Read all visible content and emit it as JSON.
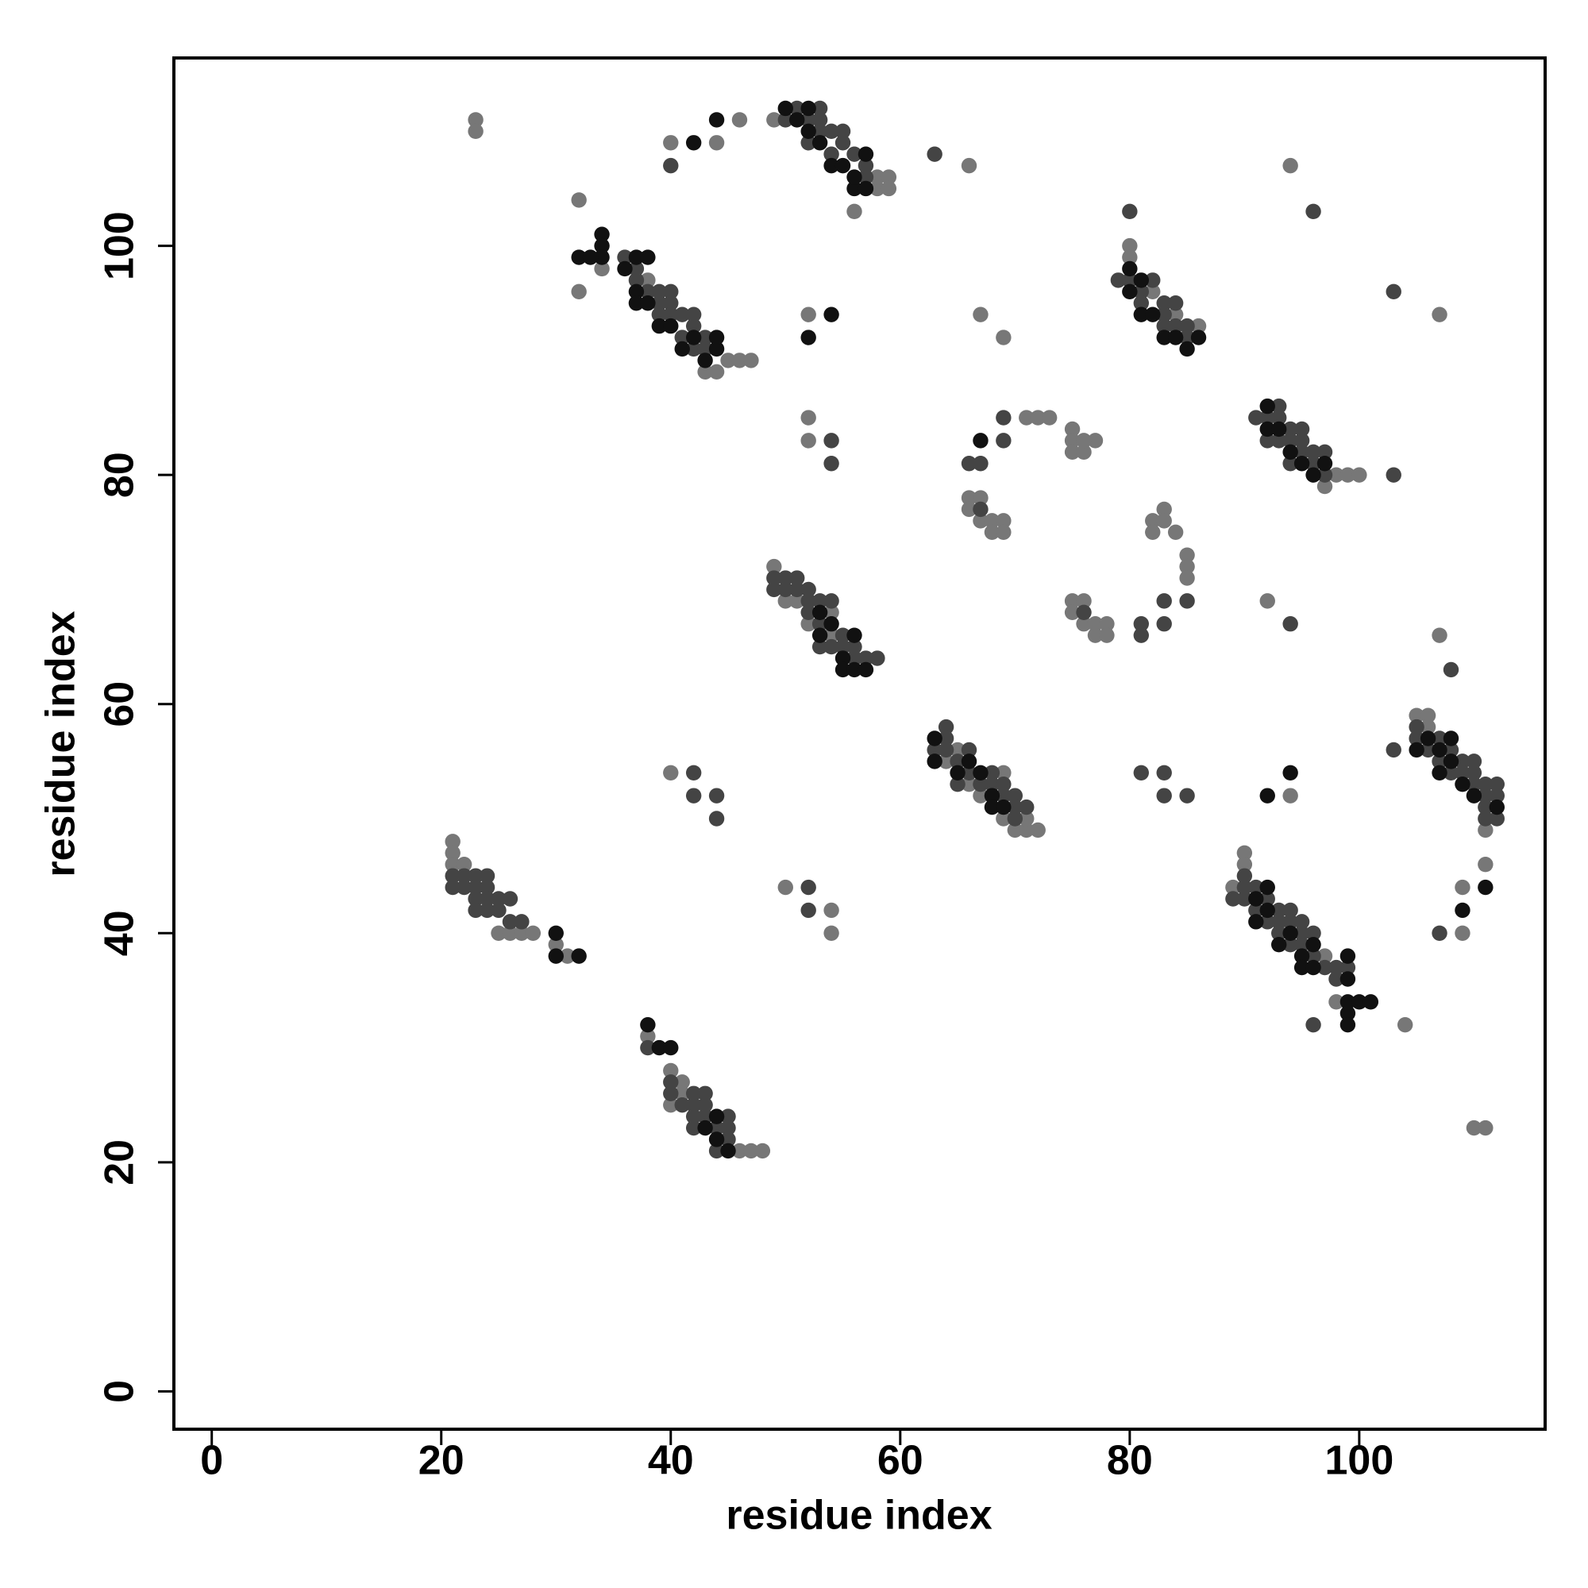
{
  "chart_data": {
    "type": "scatter",
    "xlabel": "residue index",
    "ylabel": "residue index",
    "xlim": [
      -3.3,
      116.2
    ],
    "ylim": [
      -3.3,
      116.4
    ],
    "xticks": [
      0,
      20,
      40,
      60,
      80,
      100
    ],
    "yticks": [
      0,
      20,
      40,
      60,
      80,
      100
    ],
    "series": [
      {
        "color": "#777777",
        "x": [
          23,
          23,
          32,
          40,
          44,
          46,
          56,
          58,
          58,
          59,
          59,
          49,
          32,
          34,
          38,
          43,
          44,
          45,
          46,
          47,
          80,
          80,
          82,
          84,
          86,
          66,
          94,
          107,
          52,
          67,
          69,
          98,
          99,
          100,
          97,
          71,
          72,
          73,
          75,
          75,
          75,
          76,
          77,
          76,
          66,
          67,
          66,
          67,
          68,
          69,
          68,
          69,
          82,
          83,
          83,
          82,
          84,
          85,
          85,
          85,
          75,
          76,
          75,
          76,
          77,
          77,
          78,
          78,
          49,
          50,
          51,
          52,
          54,
          54,
          64,
          65,
          66,
          67,
          69,
          69,
          70,
          71,
          72,
          71,
          105,
          106,
          106,
          111,
          111,
          109,
          109,
          107,
          94,
          92,
          90,
          90,
          89,
          97,
          98,
          104,
          21,
          21,
          21,
          22,
          25,
          26,
          27,
          28,
          30,
          31,
          38,
          40,
          40,
          41,
          46,
          47,
          48,
          110,
          111,
          40,
          50,
          54,
          54,
          52,
          52,
          41
        ],
        "y": [
          111,
          110,
          104,
          109,
          109,
          111,
          103,
          105,
          106,
          106,
          105,
          111,
          96,
          98,
          97,
          89,
          89,
          90,
          90,
          90,
          100,
          99,
          96,
          94,
          93,
          107,
          107,
          94,
          94,
          94,
          92,
          80,
          80,
          80,
          79,
          85,
          85,
          85,
          84,
          83,
          82,
          82,
          83,
          83,
          78,
          78,
          77,
          76,
          76,
          76,
          75,
          75,
          76,
          77,
          76,
          75,
          75,
          73,
          72,
          71,
          69,
          69,
          68,
          67,
          67,
          66,
          67,
          66,
          72,
          69,
          69,
          67,
          68,
          66,
          55,
          56,
          53,
          52,
          54,
          50,
          49,
          49,
          49,
          50,
          59,
          59,
          58,
          49,
          46,
          44,
          40,
          66,
          52,
          69,
          47,
          46,
          44,
          38,
          34,
          32,
          48,
          47,
          46,
          46,
          40,
          40,
          40,
          40,
          39,
          38,
          31,
          28,
          25,
          27,
          21,
          21,
          21,
          23,
          23,
          54,
          44,
          40,
          42,
          85,
          83,
          26
        ]
      },
      {
        "color": "#444444",
        "x": [
          40,
          50,
          51,
          52,
          53,
          53,
          53,
          54,
          54,
          55,
          55,
          56,
          57,
          57,
          63,
          96,
          103,
          52,
          36,
          37,
          37,
          38,
          39,
          39,
          39,
          40,
          40,
          40,
          41,
          41,
          42,
          42,
          42,
          43,
          43,
          80,
          79,
          80,
          81,
          81,
          82,
          83,
          83,
          83,
          84,
          84,
          85,
          85,
          91,
          92,
          92,
          93,
          93,
          93,
          94,
          94,
          94,
          95,
          95,
          95,
          96,
          96,
          97,
          97,
          103,
          54,
          54,
          69,
          66,
          67,
          69,
          67,
          76,
          81,
          81,
          83,
          83,
          85,
          49,
          49,
          50,
          50,
          51,
          51,
          52,
          52,
          52,
          53,
          53,
          53,
          54,
          54,
          55,
          55,
          56,
          56,
          57,
          58,
          63,
          64,
          64,
          64,
          65,
          65,
          66,
          66,
          67,
          68,
          68,
          69,
          69,
          70,
          70,
          70,
          71,
          103,
          105,
          105,
          106,
          107,
          107,
          108,
          108,
          109,
          109,
          110,
          110,
          110,
          111,
          111,
          111,
          111,
          112,
          112,
          112,
          107,
          108,
          81,
          83,
          83,
          85,
          94,
          90,
          89,
          90,
          90,
          91,
          91,
          92,
          92,
          93,
          93,
          93,
          94,
          94,
          94,
          95,
          95,
          95,
          96,
          96,
          97,
          98,
          98,
          99,
          96,
          21,
          21,
          22,
          22,
          23,
          23,
          23,
          23,
          24,
          24,
          24,
          24,
          25,
          25,
          26,
          26,
          27,
          42,
          42,
          44,
          44,
          52,
          52,
          38,
          40,
          40,
          41,
          42,
          42,
          42,
          42,
          43,
          43,
          43,
          44,
          44,
          45,
          45,
          45
        ],
        "y": [
          107,
          111,
          112,
          111,
          112,
          111,
          110,
          110,
          108,
          110,
          109,
          108,
          107,
          106,
          108,
          103,
          96,
          109,
          99,
          98,
          97,
          96,
          96,
          95,
          94,
          96,
          95,
          94,
          94,
          92,
          94,
          93,
          91,
          92,
          91,
          103,
          97,
          97,
          96,
          95,
          97,
          95,
          94,
          93,
          95,
          93,
          93,
          92,
          85,
          85,
          83,
          86,
          85,
          83,
          84,
          83,
          81,
          84,
          83,
          82,
          82,
          81,
          82,
          80,
          80,
          83,
          81,
          85,
          81,
          81,
          83,
          77,
          68,
          67,
          66,
          69,
          67,
          69,
          71,
          70,
          71,
          70,
          71,
          70,
          70,
          69,
          68,
          69,
          67,
          65,
          69,
          65,
          66,
          65,
          65,
          64,
          64,
          64,
          56,
          58,
          57,
          56,
          55,
          53,
          56,
          54,
          53,
          54,
          53,
          53,
          52,
          52,
          51,
          50,
          51,
          56,
          58,
          57,
          56,
          57,
          55,
          56,
          54,
          55,
          54,
          55,
          54,
          53,
          53,
          52,
          51,
          50,
          53,
          52,
          50,
          40,
          63,
          54,
          54,
          52,
          52,
          67,
          45,
          43,
          44,
          43,
          44,
          42,
          43,
          41,
          42,
          41,
          40,
          42,
          41,
          39,
          41,
          40,
          39,
          40,
          38,
          37,
          37,
          36,
          37,
          32,
          45,
          44,
          45,
          44,
          45,
          44,
          43,
          42,
          45,
          44,
          43,
          42,
          43,
          42,
          43,
          41,
          41,
          54,
          52,
          52,
          50,
          44,
          42,
          30,
          27,
          26,
          25,
          26,
          25,
          24,
          23,
          26,
          25,
          24,
          23,
          21,
          24,
          23,
          22
        ]
      },
      {
        "color": "#111111",
        "x": [
          42,
          44,
          50,
          51,
          52,
          52,
          53,
          54,
          55,
          56,
          57,
          57,
          56,
          32,
          34,
          34,
          34,
          37,
          38,
          37,
          37,
          38,
          39,
          40,
          41,
          42,
          43,
          44,
          44,
          80,
          80,
          81,
          81,
          82,
          83,
          85,
          86,
          84,
          92,
          92,
          93,
          94,
          95,
          96,
          97,
          52,
          54,
          67,
          53,
          53,
          54,
          55,
          55,
          56,
          57,
          56,
          63,
          63,
          65,
          66,
          67,
          68,
          68,
          69,
          105,
          106,
          107,
          107,
          108,
          108,
          109,
          110,
          112,
          111,
          109,
          91,
          91,
          92,
          92,
          93,
          94,
          95,
          95,
          96,
          96,
          99,
          99,
          99,
          99,
          99,
          100,
          101,
          92,
          94,
          30,
          30,
          32,
          38,
          39,
          40,
          43,
          44,
          45,
          44,
          33,
          36
        ],
        "y": [
          109,
          111,
          112,
          111,
          112,
          110,
          109,
          107,
          107,
          105,
          108,
          105,
          106,
          99,
          101,
          100,
          99,
          99,
          99,
          96,
          95,
          95,
          93,
          93,
          91,
          92,
          90,
          91,
          92,
          98,
          96,
          97,
          94,
          94,
          92,
          91,
          92,
          92,
          86,
          84,
          84,
          82,
          81,
          80,
          81,
          92,
          94,
          83,
          68,
          66,
          67,
          64,
          63,
          63,
          63,
          66,
          57,
          55,
          54,
          55,
          54,
          52,
          51,
          51,
          56,
          57,
          56,
          54,
          57,
          55,
          53,
          52,
          51,
          44,
          42,
          43,
          41,
          44,
          42,
          39,
          40,
          38,
          37,
          39,
          37,
          38,
          36,
          33,
          32,
          34,
          34,
          34,
          52,
          54,
          40,
          38,
          38,
          32,
          30,
          30,
          23,
          22,
          21,
          24,
          99,
          98
        ]
      }
    ]
  }
}
